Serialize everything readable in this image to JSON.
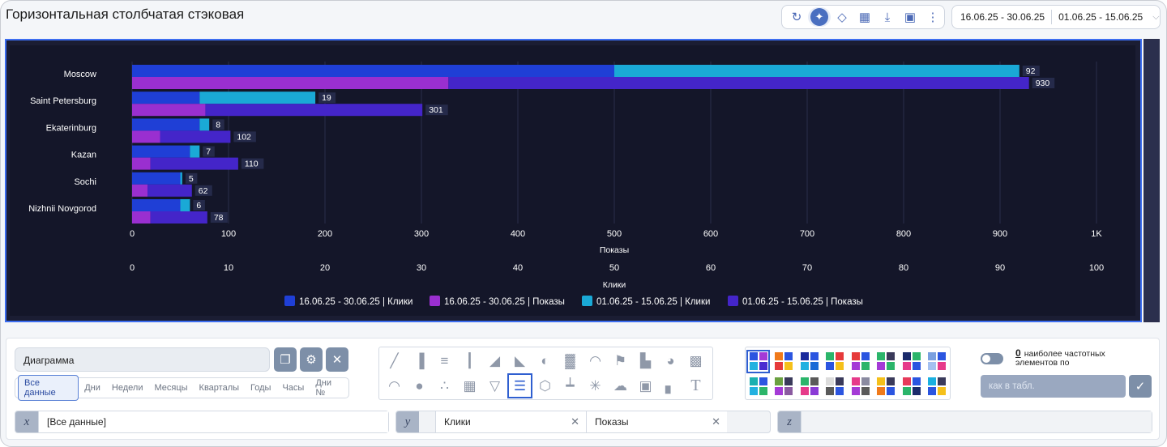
{
  "header": {
    "title": "Горизонтальная столбчатая стэковая",
    "date_range_1": "16.06.25 - 30.06.25",
    "date_range_2": "01.06.25 - 15.06.25"
  },
  "colors": {
    "series_1": "#1f3fd6",
    "series_2": "#9a2fd0",
    "series_3": "#1aa9d6",
    "series_4": "#4425c9",
    "plot_bg": "#141629",
    "accent": "#3c6df0"
  },
  "chart_data": {
    "type": "bar",
    "orientation": "horizontal",
    "stacked": true,
    "categories": [
      "Moscow",
      "Saint Petersburg",
      "Ekaterinburg",
      "Kazan",
      "Sochi",
      "Nizhnii Novgorod"
    ],
    "series": [
      {
        "name": "16.06.25 - 30.06.25 | Клики",
        "axis": "Клики",
        "values": [
          50,
          7,
          7,
          6,
          5,
          5
        ]
      },
      {
        "name": "01.06.25 - 15.06.25 | Клики",
        "axis": "Клики",
        "values": [
          42,
          12,
          1,
          1,
          0.2,
          1
        ],
        "total_labels": [
          92,
          19,
          8,
          7,
          5,
          6
        ]
      },
      {
        "name": "16.06.25 - 30.06.25 | Показы",
        "axis": "Показы",
        "values": [
          328,
          76,
          29,
          19,
          16,
          19
        ]
      },
      {
        "name": "01.06.25 - 15.06.25 | Показы",
        "axis": "Показы",
        "values": [
          602,
          225,
          73,
          91,
          46,
          59
        ],
        "total_labels": [
          930,
          301,
          102,
          110,
          62,
          78
        ]
      }
    ],
    "axis_top": {
      "label": "Показы",
      "ticks": [
        "0",
        "100",
        "200",
        "300",
        "400",
        "500",
        "600",
        "700",
        "800",
        "900",
        "1K"
      ],
      "range": [
        0,
        1000
      ]
    },
    "axis_bottom": {
      "label": "Клики",
      "ticks": [
        "0",
        "10",
        "20",
        "30",
        "40",
        "50",
        "60",
        "70",
        "80",
        "90",
        "100"
      ],
      "range": [
        0,
        100
      ]
    },
    "legend": [
      "16.06.25 - 30.06.25 | Клики",
      "16.06.25 - 30.06.25 | Показы",
      "01.06.25 - 15.06.25 | Клики",
      "01.06.25 - 15.06.25 | Показы"
    ],
    "legend_position": "bottom"
  },
  "settings": {
    "name_value": "Диаграмма",
    "periods": [
      "Все данные",
      "Дни",
      "Недели",
      "Месяцы",
      "Кварталы",
      "Годы",
      "Часы",
      "Дни №"
    ],
    "top_n_count": "0",
    "top_n_label": "наиболее частотных элементов по",
    "as_table_placeholder": "как в табл.",
    "x_axis_label": "x",
    "x_value": "[Все данные]",
    "y_axis_label": "y",
    "y_values": [
      "Клики",
      "Показы"
    ],
    "z_axis_label": "z"
  },
  "icons": {
    "toolbar": [
      "refresh-icon",
      "chart-axes-icon",
      "pin-icon",
      "add-widget-icon",
      "download-icon",
      "save-icon",
      "more-icon"
    ],
    "name_actions": [
      "copy-icon",
      "settings-icon",
      "close-icon"
    ]
  }
}
